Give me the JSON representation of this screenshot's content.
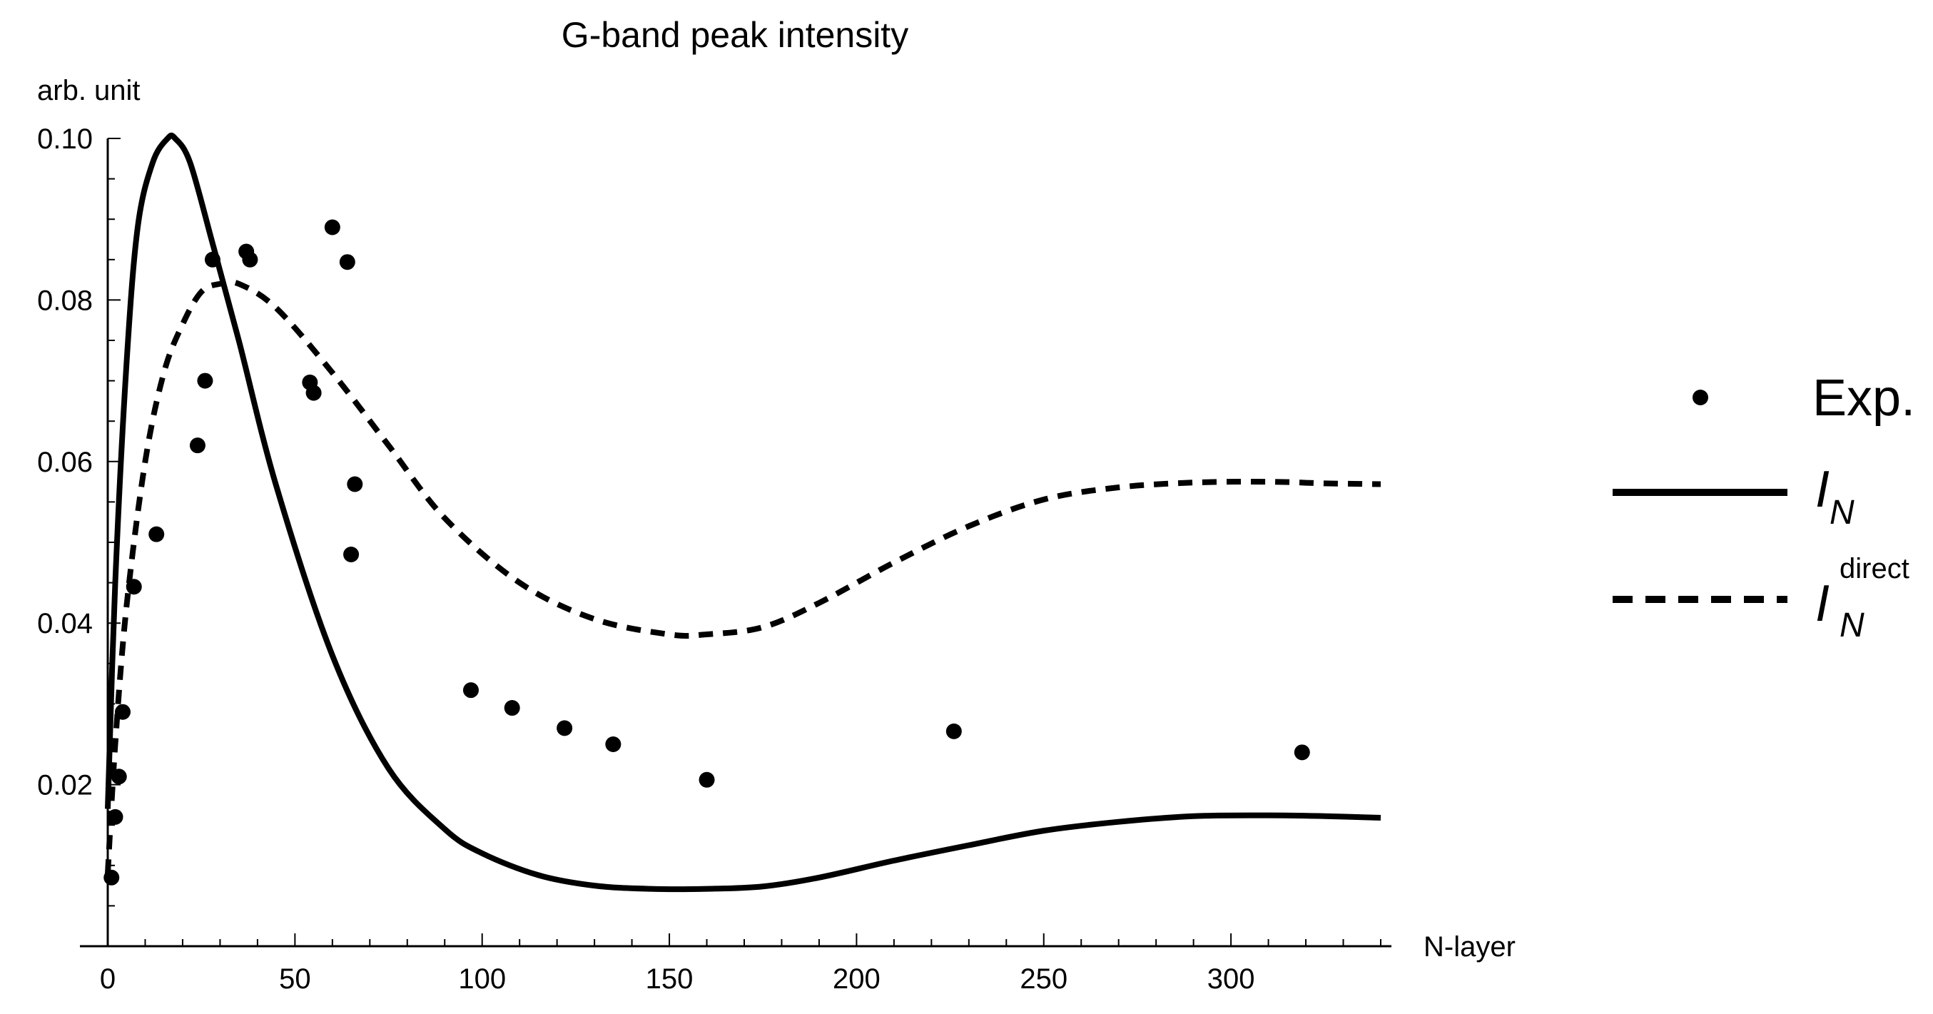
{
  "chart_data": {
    "type": "scatter",
    "title": "G-band peak intensity",
    "xlabel": "N-layer",
    "ylabel": "arb. unit",
    "xlim": [
      0,
      340
    ],
    "ylim": [
      0,
      0.1
    ],
    "xticks": [
      0,
      50,
      100,
      150,
      200,
      250,
      300
    ],
    "xtick_labels": [
      "0",
      "50",
      "100",
      "150",
      "200",
      "250",
      "300"
    ],
    "yticks": [
      0.02,
      0.04,
      0.06,
      0.08,
      0.1
    ],
    "ytick_labels": [
      "0.02",
      "0.04",
      "0.06",
      "0.08",
      "0.10"
    ],
    "grid": false,
    "legend_position": "right",
    "series": [
      {
        "name": "Exp.",
        "kind": "points",
        "x": [
          1,
          2,
          3,
          4,
          7,
          13,
          24,
          26,
          28,
          37,
          38,
          54,
          55,
          60,
          64,
          65,
          66,
          97,
          108,
          122,
          135,
          160,
          226,
          319
        ],
        "y": [
          0.0085,
          0.016,
          0.021,
          0.029,
          0.0445,
          0.051,
          0.062,
          0.07,
          0.085,
          0.086,
          0.085,
          0.0698,
          0.0685,
          0.089,
          0.0847,
          0.0485,
          0.0572,
          0.0317,
          0.0295,
          0.027,
          0.025,
          0.0206,
          0.0266,
          0.024
        ]
      },
      {
        "name": "I",
        "subscript": "N",
        "kind": "solid-line",
        "x": [
          0,
          2,
          5,
          8,
          12,
          16,
          18,
          22,
          28,
          35,
          45,
          60,
          75,
          90,
          100,
          115,
          130,
          145,
          160,
          175,
          190,
          210,
          230,
          250,
          270,
          290,
          310,
          325,
          340
        ],
        "y": [
          0.017,
          0.045,
          0.072,
          0.089,
          0.097,
          0.1,
          0.1,
          0.097,
          0.087,
          0.075,
          0.057,
          0.036,
          0.022,
          0.0145,
          0.0115,
          0.0088,
          0.0075,
          0.0071,
          0.0071,
          0.0074,
          0.0085,
          0.0106,
          0.0125,
          0.0143,
          0.0154,
          0.0161,
          0.0162,
          0.0161,
          0.0159
        ]
      },
      {
        "name": "I",
        "subscript": "N",
        "superscript": "direct",
        "kind": "dashed-line",
        "x": [
          0,
          2,
          5,
          10,
          15,
          20,
          25,
          30,
          35,
          45,
          60,
          75,
          90,
          110,
          130,
          150,
          160,
          175,
          190,
          210,
          230,
          250,
          270,
          290,
          310,
          325,
          340
        ],
        "y": [
          0.009,
          0.025,
          0.042,
          0.06,
          0.071,
          0.077,
          0.081,
          0.082,
          0.082,
          0.079,
          0.071,
          0.062,
          0.053,
          0.045,
          0.0405,
          0.0386,
          0.0386,
          0.0395,
          0.0425,
          0.0475,
          0.052,
          0.0553,
          0.0568,
          0.0574,
          0.0575,
          0.0573,
          0.0572
        ]
      }
    ]
  }
}
